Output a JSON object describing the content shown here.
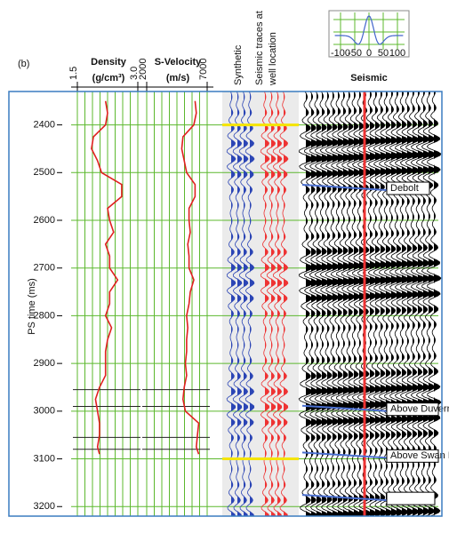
{
  "chart_data": {
    "type": "well-tie",
    "panel_label": "(b)",
    "ylabel": "PS time (ms)",
    "ylim": [
      2330,
      3220
    ],
    "yticks": [
      2400,
      2500,
      2600,
      2700,
      2800,
      2900,
      3000,
      3100,
      3200
    ],
    "grid": true,
    "density": {
      "title": "Density",
      "unit": "(g/cm³)",
      "color": "#e02020",
      "xlim": [
        1.5,
        3
      ],
      "xticks": [
        1.5,
        {
          "value": 3,
          "label": "3.0"
        }
      ],
      "x": [
        2350,
        2375,
        2400,
        2425,
        2450,
        2475,
        2500,
        2525,
        2550,
        2575,
        2600,
        2625,
        2650,
        2675,
        2700,
        2725,
        2750,
        2775,
        2800,
        2825,
        2850,
        2875,
        2900,
        2925,
        2950,
        2975,
        3000,
        3025,
        3050,
        3075,
        3090
      ],
      "values": [
        2.2,
        2.25,
        2.2,
        1.9,
        1.85,
        2.0,
        2.1,
        2.6,
        2.6,
        2.25,
        2.3,
        2.4,
        2.2,
        2.3,
        2.3,
        2.5,
        2.3,
        2.3,
        2.2,
        2.35,
        2.25,
        2.2,
        2.2,
        2.2,
        2.05,
        1.95,
        2.0,
        2.05,
        2.05,
        2.0,
        2.05
      ]
    },
    "velocity": {
      "title": "S-Velocity",
      "unit": "(m/s)",
      "color": "#e02020",
      "xlim": [
        2000,
        7000
      ],
      "xticks": [
        2000,
        7000
      ],
      "x": [
        2350,
        2375,
        2400,
        2425,
        2450,
        2475,
        2500,
        2525,
        2550,
        2575,
        2600,
        2625,
        2650,
        2675,
        2700,
        2725,
        2750,
        2775,
        2800,
        2825,
        2850,
        2875,
        2900,
        2925,
        2950,
        2975,
        3000,
        3025,
        3050,
        3075,
        3090
      ],
      "values": [
        6000,
        6100,
        5900,
        5000,
        4900,
        5100,
        5300,
        6000,
        6000,
        5500,
        5500,
        5600,
        5400,
        5500,
        5500,
        5900,
        5600,
        5500,
        5300,
        5400,
        5300,
        5300,
        5200,
        5300,
        5100,
        5000,
        5200,
        6300,
        6200,
        6100,
        6300
      ]
    },
    "synthetic_title": "Synthetic",
    "traces_title": [
      "Seismic traces at",
      "well location"
    ],
    "seismic_title": "Seismic",
    "tie_lines": [
      2400,
      3100
    ],
    "log_markers": [
      2955,
      2990,
      3055,
      3080
    ],
    "horizons": [
      {
        "label": "Debolt",
        "time": 2533
      },
      {
        "label": "Above Duvernay",
        "time": 2996
      },
      {
        "label": "Above Swan Hills",
        "time": 3094
      },
      {
        "label": null,
        "time": 3183
      }
    ],
    "wavelet": {
      "xlim": [
        -125,
        125
      ],
      "xticks": [
        -100,
        -50,
        0,
        50,
        100
      ]
    }
  }
}
